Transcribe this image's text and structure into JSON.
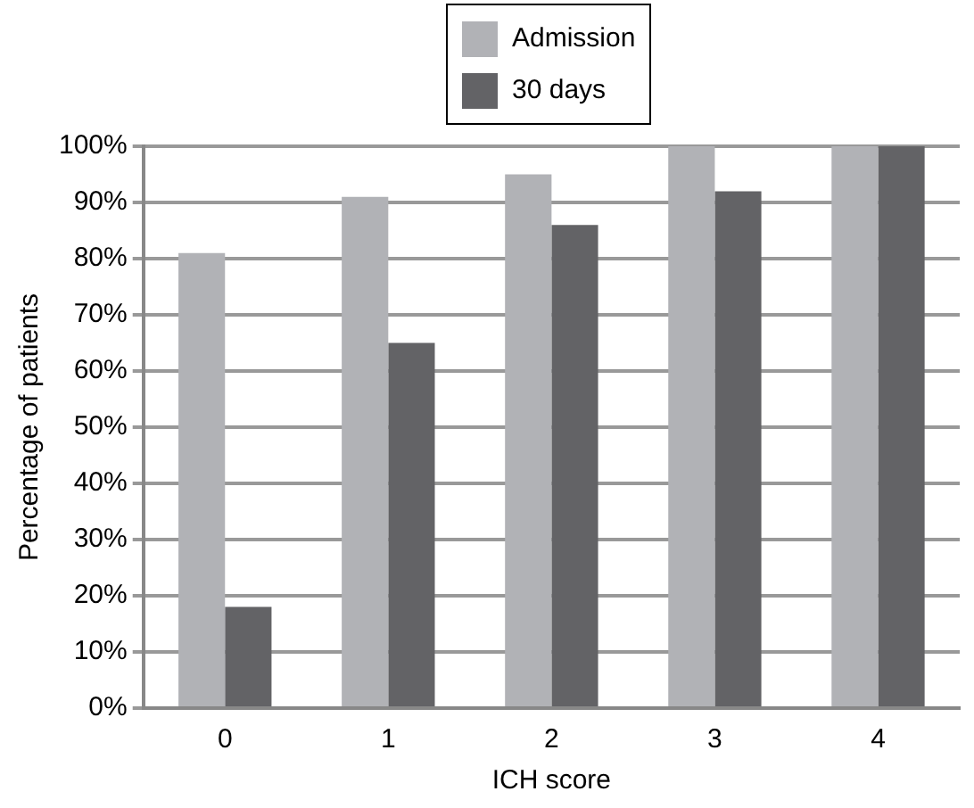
{
  "chart_data": {
    "type": "bar",
    "xlabel": "ICH score",
    "ylabel": "Percentage of patients",
    "categories": [
      "0",
      "1",
      "2",
      "3",
      "4"
    ],
    "series": [
      {
        "name": "Admission",
        "color": "#b1b2b6",
        "values": [
          81,
          91,
          95,
          100,
          100
        ]
      },
      {
        "name": "30 days",
        "color": "#636366",
        "values": [
          18,
          65,
          86,
          92,
          100
        ]
      }
    ],
    "ylim": [
      0,
      100
    ],
    "yticks": [
      {
        "value": 0,
        "label": "0%"
      },
      {
        "value": 10,
        "label": "10%"
      },
      {
        "value": 20,
        "label": "20%"
      },
      {
        "value": 30,
        "label": "30%"
      },
      {
        "value": 40,
        "label": "40%"
      },
      {
        "value": 50,
        "label": "50%"
      },
      {
        "value": 60,
        "label": "60%"
      },
      {
        "value": 70,
        "label": "70%"
      },
      {
        "value": 80,
        "label": "80%"
      },
      {
        "value": 90,
        "label": "90%"
      },
      {
        "value": 100,
        "label": "100%"
      }
    ],
    "grid": "y",
    "legend": "top"
  }
}
